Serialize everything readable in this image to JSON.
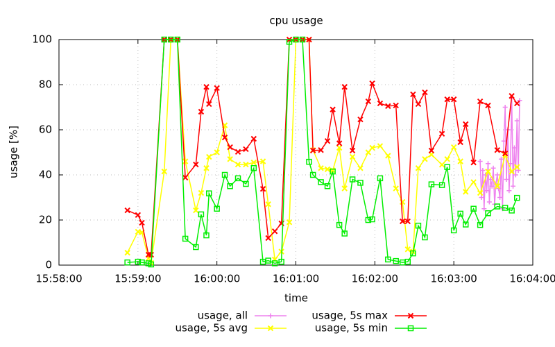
{
  "chart_data": {
    "type": "line",
    "title": "cpu usage",
    "x_label": "time",
    "y_label": "usage [%]",
    "xlim": [
      "15:58:00",
      "16:04:00"
    ],
    "xticks": [
      "15:58:00",
      "15:59:00",
      "16:00:00",
      "16:01:00",
      "16:02:00",
      "16:03:00",
      "16:04:00"
    ],
    "ylim": [
      0,
      100
    ],
    "yticks": [
      0,
      20,
      40,
      60,
      80,
      100
    ],
    "grid": true,
    "x": [
      "15:58:52",
      "15:59:00",
      "15:59:03",
      "15:59:08",
      "15:59:10",
      "15:59:20",
      "15:59:25",
      "15:59:30",
      "15:59:36",
      "15:59:44",
      "15:59:48",
      "15:59:52",
      "15:59:54",
      "16:00:00",
      "16:00:06",
      "16:00:10",
      "16:00:16",
      "16:00:22",
      "16:00:28",
      "16:00:35",
      "16:00:39",
      "16:00:44",
      "16:00:49",
      "16:00:55",
      "16:01:00",
      "16:01:05",
      "16:01:10",
      "16:01:13",
      "16:01:19",
      "16:01:24",
      "16:01:28",
      "16:01:33",
      "16:01:37",
      "16:01:43",
      "16:01:49",
      "16:01:55",
      "16:01:58",
      "16:02:04",
      "16:02:10",
      "16:02:16",
      "16:02:21",
      "16:02:25",
      "16:02:29",
      "16:02:33",
      "16:02:38",
      "16:02:43",
      "16:02:51",
      "16:02:55",
      "16:03:00",
      "16:03:05",
      "16:03:09",
      "16:03:15",
      "16:03:20",
      "16:03:26",
      "16:03:33",
      "16:03:39",
      "16:03:44",
      "16:03:48"
    ],
    "series": [
      {
        "name": "usage, all",
        "color": "#ee82ee",
        "marker": "plus",
        "x": [
          "16:03:20",
          "16:03:21",
          "16:03:22",
          "16:03:23",
          "16:03:24",
          "16:03:25",
          "16:03:26",
          "16:03:27",
          "16:03:28",
          "16:03:29",
          "16:03:30",
          "16:03:31",
          "16:03:32",
          "16:03:33",
          "16:03:34",
          "16:03:35",
          "16:03:36",
          "16:03:37",
          "16:03:38",
          "16:03:39",
          "16:03:40",
          "16:03:41",
          "16:03:42",
          "16:03:43",
          "16:03:44",
          "16:03:45",
          "16:03:46",
          "16:03:47",
          "16:03:48",
          "16:03:49",
          "16:03:50"
        ],
        "values": [
          46,
          30,
          42,
          25,
          40,
          33,
          45,
          28,
          38,
          35,
          43,
          27,
          36,
          40,
          34,
          30,
          47,
          25,
          55,
          70,
          38,
          60,
          33,
          45,
          74,
          35,
          52,
          40,
          64,
          42,
          73
        ]
      },
      {
        "name": "usage, 5s avg",
        "color": "#ffff00",
        "marker": "cross",
        "values": [
          5.5,
          14.8,
          14.5,
          3.0,
          1.0,
          41.5,
          100,
          100,
          46,
          24.3,
          32,
          43,
          48,
          50,
          62,
          47,
          44.6,
          44.6,
          45.5,
          46,
          27,
          2.5,
          6,
          19,
          100,
          100,
          100,
          51,
          43,
          42.5,
          42,
          52,
          34,
          48,
          43,
          50,
          52,
          52.8,
          48.5,
          34,
          28,
          7,
          6,
          43,
          47,
          49,
          44.5,
          47,
          52.3,
          46,
          32.5,
          36.8,
          32,
          41.5,
          35,
          48.7,
          41.5,
          43.5
        ]
      },
      {
        "name": "usage, 5s max",
        "color": "#ff0000",
        "marker": "cross",
        "values": [
          24.3,
          22.2,
          18.8,
          4.6,
          4.6,
          100,
          100,
          100,
          38.8,
          44.6,
          68,
          79,
          71.4,
          78.5,
          56.6,
          52.3,
          50.2,
          51.4,
          56,
          33.8,
          12,
          15,
          18.5,
          100,
          100,
          100,
          100,
          50.8,
          51,
          55,
          69,
          54,
          79,
          50.8,
          64.6,
          72.6,
          80.6,
          71.7,
          70.5,
          70.8,
          19.4,
          19.4,
          75.7,
          71.4,
          76.6,
          50.8,
          58.2,
          73.5,
          73.5,
          54.5,
          62.5,
          45.5,
          72.6,
          70.8,
          51,
          49.5,
          75,
          71.7
        ]
      },
      {
        "name": "usage, 5s min",
        "color": "#00ee00",
        "marker": "square",
        "values": [
          1.2,
          1.5,
          1.2,
          0.8,
          0.3,
          100,
          100,
          100,
          11.7,
          8.0,
          22.5,
          13.2,
          31.8,
          25,
          40,
          35,
          38.5,
          36,
          43,
          1.5,
          2,
          0.8,
          1.5,
          99,
          100,
          100,
          45.8,
          40,
          36.8,
          35,
          41.5,
          17.8,
          14,
          38,
          36.5,
          20,
          20.3,
          38.5,
          2.5,
          1.8,
          1.2,
          1.5,
          5.2,
          17.5,
          12.3,
          35.8,
          35.5,
          43.5,
          15.4,
          22.8,
          18,
          25,
          17.8,
          23,
          26,
          25.4,
          24.2,
          29.8
        ]
      }
    ]
  }
}
